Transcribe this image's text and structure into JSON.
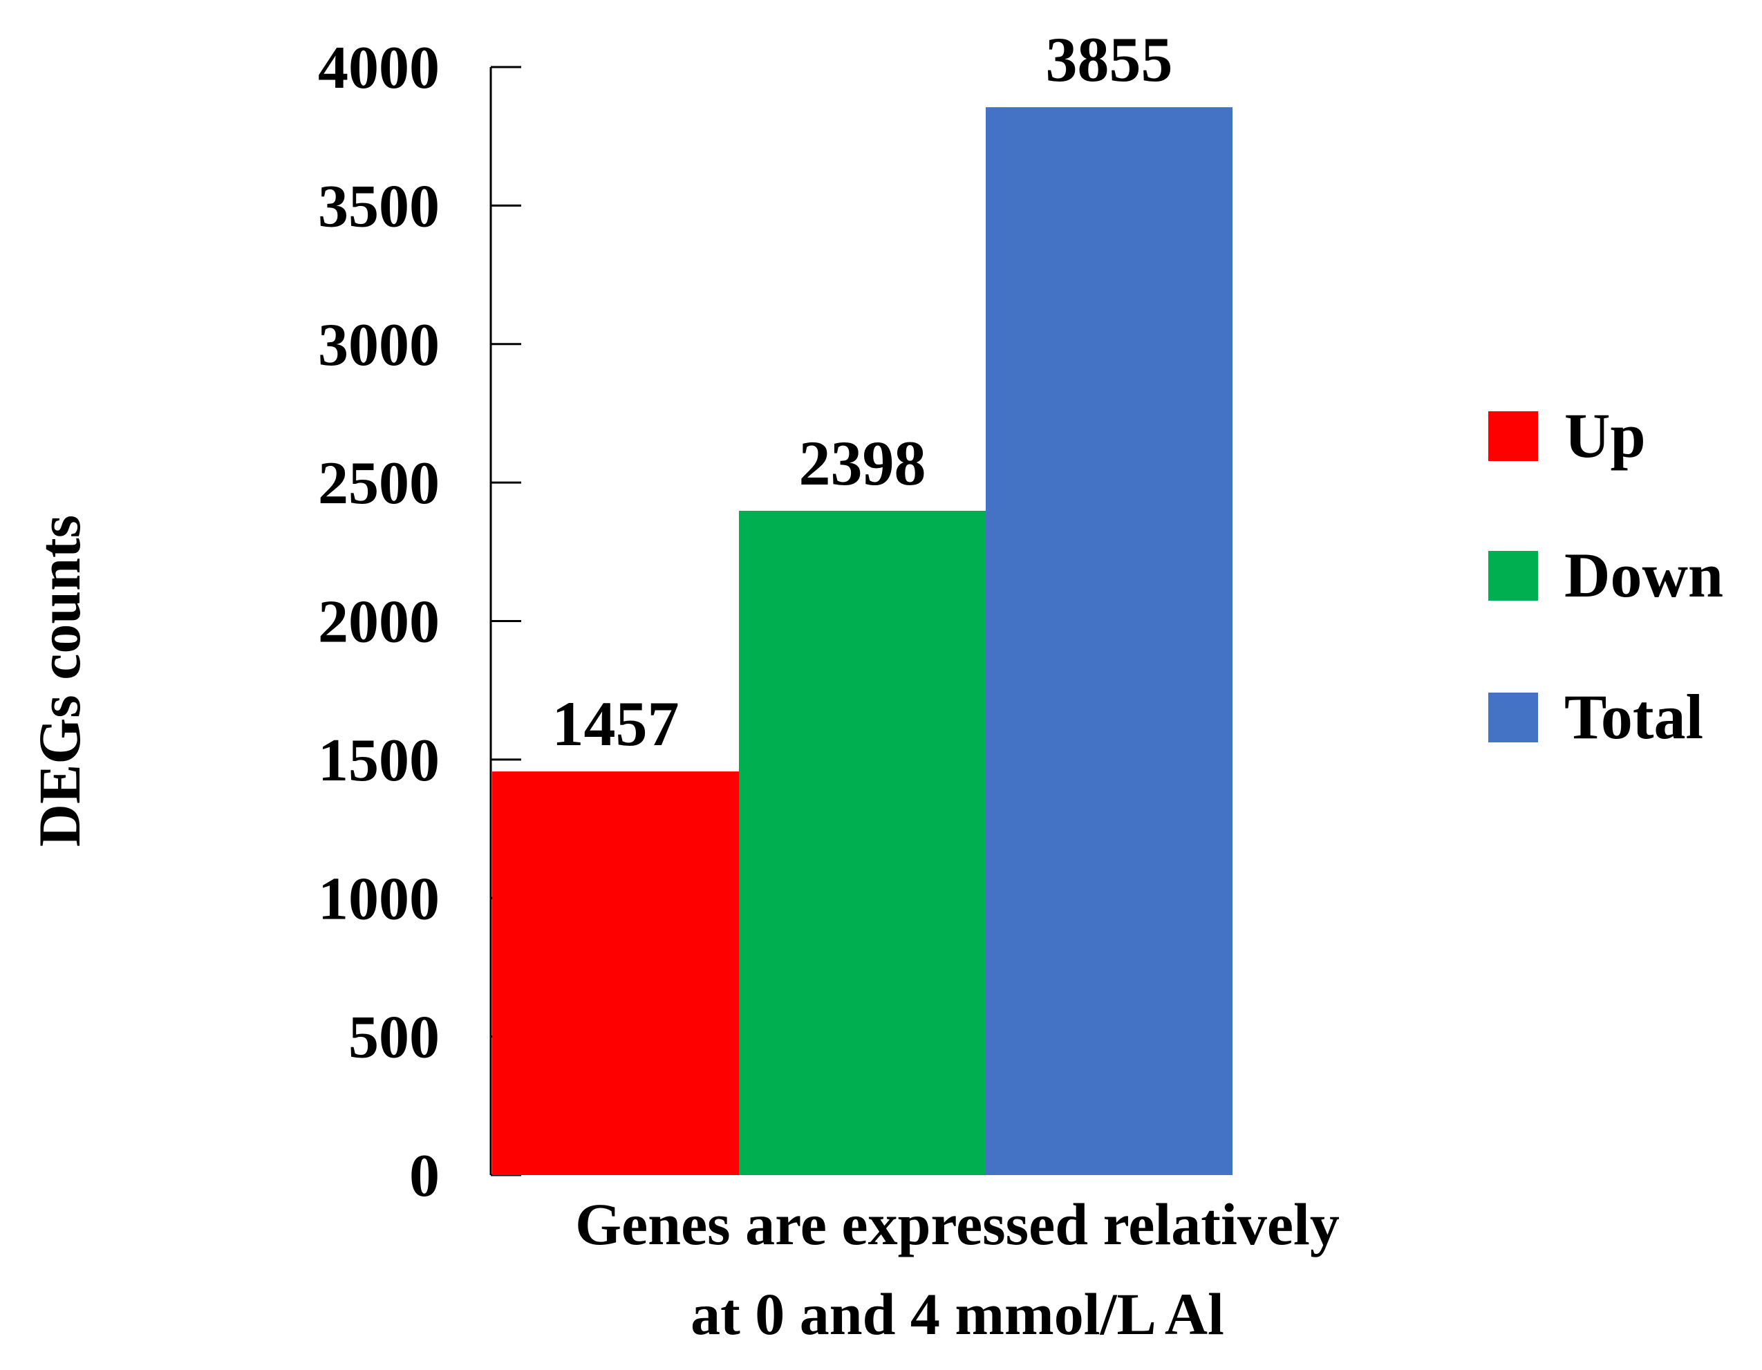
{
  "chart_data": {
    "type": "bar",
    "title": "",
    "xlabel_lines": [
      "Genes are expressed relatively",
      "at 0 and  4 mmol/L Al"
    ],
    "ylabel": "DEGs counts",
    "ylim": [
      0,
      4000
    ],
    "yticks": [
      0,
      500,
      1000,
      1500,
      2000,
      2500,
      3000,
      3500,
      4000
    ],
    "grid": false,
    "legend_position": "right",
    "series": [
      {
        "name": "Up",
        "value": 1457,
        "color": "#FF0000"
      },
      {
        "name": "Down",
        "value": 2398,
        "color": "#00B050"
      },
      {
        "name": "Total",
        "value": 3855,
        "color": "#4472C4"
      }
    ]
  }
}
